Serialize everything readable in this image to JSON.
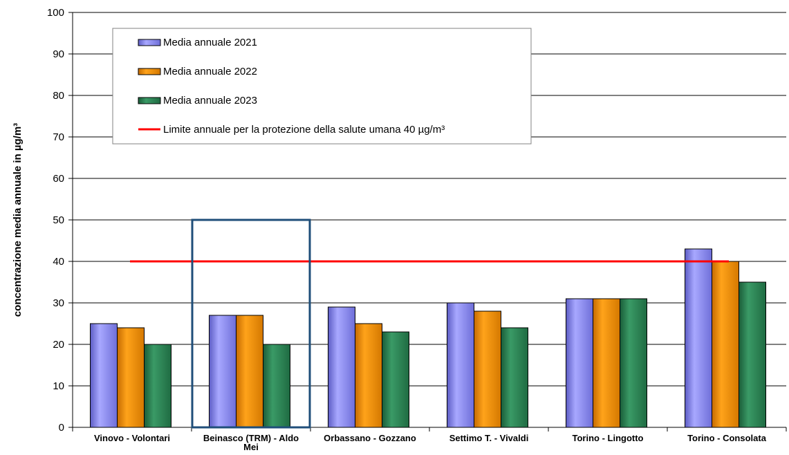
{
  "chart_data": {
    "type": "bar",
    "ylabel": "concentrazione media annuale in µg/m³",
    "xlabel": "",
    "ylim": [
      0,
      100
    ],
    "yticks": [
      0,
      10,
      20,
      30,
      40,
      50,
      60,
      70,
      80,
      90,
      100
    ],
    "grid": true,
    "legend_position": "top-left",
    "categories": [
      "Vinovo - Volontari",
      "Beinasco (TRM) - Aldo Mei",
      "Orbassano - Gozzano",
      "Settimo T. - Vivaldi",
      "Torino - Lingotto",
      "Torino - Consolata"
    ],
    "series": [
      {
        "name": "Media annuale 2021",
        "color": "#9999ff",
        "values": [
          25,
          27,
          29,
          30,
          31,
          43
        ]
      },
      {
        "name": "Media annuale 2022",
        "color": "#ff9900",
        "values": [
          24,
          27,
          25,
          28,
          31,
          40
        ]
      },
      {
        "name": "Media annuale 2023",
        "color": "#2e8b57",
        "values": [
          20,
          20,
          23,
          24,
          31,
          35
        ]
      }
    ],
    "limit_line": {
      "name": "Limite annuale per la protezione della salute umana 40 µg/m³",
      "value": 40,
      "color": "#ff0000"
    },
    "highlight_category": "Beinasco (TRM) - Aldo Mei",
    "highlight_color": "#1f4e79"
  }
}
